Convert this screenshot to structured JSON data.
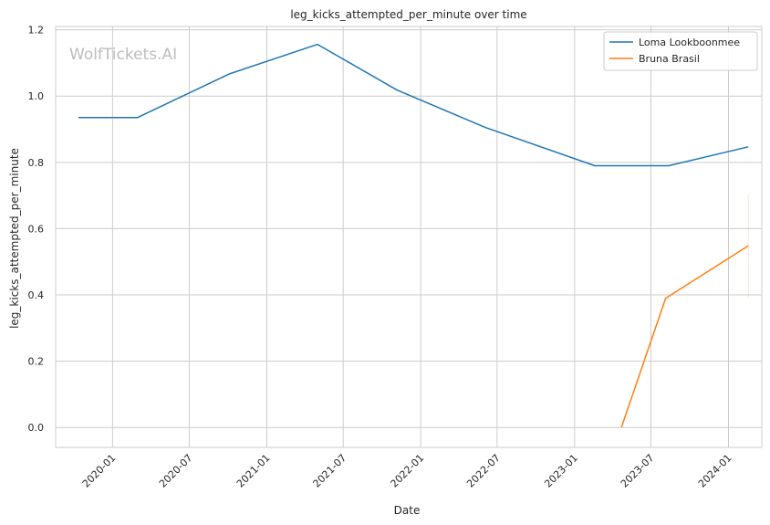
{
  "chart_data": {
    "type": "line",
    "title": "leg_kicks_attempted_per_minute over time",
    "xlabel": "Date",
    "ylabel": "leg_kicks_attempted_per_minute",
    "watermark": "WolfTickets.AI",
    "xlim": [
      "2019-08-19",
      "2024-03-20"
    ],
    "ylim": [
      -0.06,
      1.21
    ],
    "x_ticks": [
      "2020-01",
      "2020-07",
      "2021-01",
      "2021-07",
      "2022-01",
      "2022-07",
      "2023-01",
      "2023-07",
      "2024-01"
    ],
    "y_ticks": [
      0.0,
      0.2,
      0.4,
      0.6,
      0.8,
      1.0,
      1.2
    ],
    "y_tick_labels": [
      "0.0",
      "0.2",
      "0.4",
      "0.6",
      "0.8",
      "1.0",
      "1.2"
    ],
    "grid": true,
    "legend_position": "top-right",
    "series": [
      {
        "name": "Loma Lookboonmee",
        "color": "#1f77b4",
        "x": [
          "2019-10-12",
          "2020-02-29",
          "2020-10-04",
          "2021-05-01",
          "2021-11-06",
          "2022-06-04",
          "2023-02-18",
          "2023-08-12",
          "2024-02-17"
        ],
        "y": [
          0.935,
          0.935,
          1.067,
          1.156,
          1.018,
          0.905,
          0.79,
          0.79,
          0.847
        ]
      },
      {
        "name": "Bruna Brasil",
        "color": "#ff7f0e",
        "x": [
          "2023-04-22",
          "2023-08-05",
          "2024-02-17"
        ],
        "y": [
          0.0,
          0.39,
          0.548
        ],
        "error_band": {
          "x": "2024-02-17",
          "low": 0.39,
          "high": 0.705
        }
      }
    ]
  }
}
